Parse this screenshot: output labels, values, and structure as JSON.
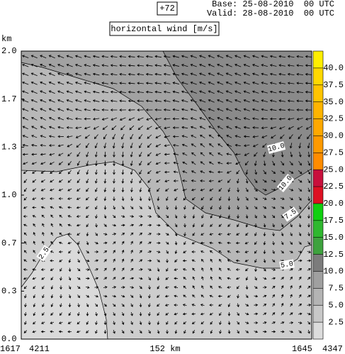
{
  "chart_data": {
    "type": "contour",
    "forecast": "+72",
    "base": "Base: 25-08-2010  00 UTC",
    "valid": "Valid: 28-08-2010  00 UTC",
    "title": "horizontal wind [m/s]",
    "ylabel": "km",
    "ylim": [
      0,
      2
    ],
    "yticks": [
      {
        "value": 2,
        "label": "2.0"
      },
      {
        "value": 1.667,
        "label": "1.7"
      },
      {
        "value": 1.333,
        "label": "1.3"
      },
      {
        "value": 1,
        "label": "1.0"
      },
      {
        "value": 0.667,
        "label": "0.7"
      },
      {
        "value": 0.333,
        "label": "0.3"
      },
      {
        "value": 0,
        "label": "0.0"
      }
    ],
    "x_labels": [
      "1617",
      "4211",
      "152 km",
      "1645",
      "4347"
    ],
    "contour_labels": [
      "10.0",
      "10.0",
      "7.5",
      "5.0",
      "2.5"
    ],
    "colorbar": {
      "lim": [
        0,
        42.5
      ],
      "ticks": [
        2.5,
        {
          "value": 5,
          "label": "5.0"
        },
        7.5,
        {
          "value": 10,
          "label": "10.0"
        },
        12.5,
        {
          "value": 15,
          "label": "15.0"
        },
        17.5,
        {
          "value": 20,
          "label": "20.0"
        },
        22.5,
        {
          "value": 25,
          "label": "25.0"
        },
        27.5,
        {
          "value": 30,
          "label": "30.0"
        },
        32.5,
        {
          "value": 35,
          "label": "35.0"
        },
        37.5,
        {
          "value": 40,
          "label": "40.0"
        }
      ],
      "colors": [
        "#dcdcdc",
        "#c8c8c8",
        "#b4b4b4",
        "#a0a0a0",
        "#7c7c7c",
        "#3ea23e",
        "#2fb82f",
        "#10d010",
        "#dd1122",
        "#c8103c",
        "#ff8c00",
        "#ff9a00",
        "#ffa800",
        "#ffb400",
        "#ffc400",
        "#ffd800",
        "#ffee00"
      ]
    }
  }
}
